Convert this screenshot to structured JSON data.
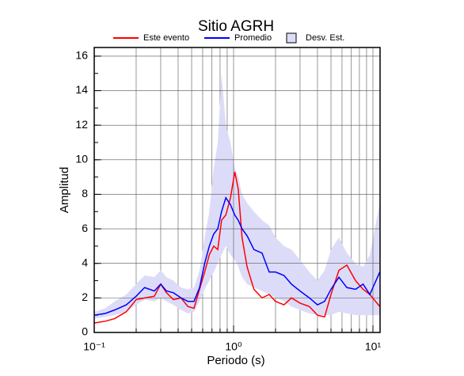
{
  "chart_data": {
    "type": "line",
    "title": "Sitio AGRH",
    "x_label": "Periodo (s)",
    "y_label": "Amplitud",
    "log_x": true,
    "grid": true,
    "xlim": [
      0.1,
      11.25
    ],
    "ylim": [
      0,
      16.5
    ],
    "xticks": [
      {
        "value": 0.1,
        "label": "10⁻¹"
      },
      {
        "value": 1,
        "label": "10⁰"
      },
      {
        "value": 10,
        "label": "10¹"
      }
    ],
    "yticks": [
      0,
      2,
      4,
      6,
      8,
      10,
      12,
      14,
      16
    ],
    "x": [
      0.1,
      0.12,
      0.14,
      0.17,
      0.2,
      0.23,
      0.27,
      0.3,
      0.33,
      0.37,
      0.42,
      0.47,
      0.52,
      0.57,
      0.62,
      0.67,
      0.72,
      0.77,
      0.82,
      0.88,
      0.95,
      1.02,
      1.08,
      1.15,
      1.25,
      1.4,
      1.6,
      1.8,
      2.0,
      2.3,
      2.6,
      3.0,
      3.5,
      4.0,
      4.5,
      5.0,
      5.7,
      6.5,
      7.5,
      8.5,
      9.5,
      11.2
    ],
    "band": {
      "name": "Desv. Est.",
      "color": "#dcdcf8",
      "lower": [
        0.8,
        0.9,
        1.0,
        1.2,
        1.6,
        1.9,
        1.8,
        2.0,
        1.8,
        1.6,
        1.3,
        1.1,
        1.2,
        1.8,
        2.5,
        3.0,
        3.5,
        4.0,
        4.5,
        5.0,
        4.5,
        4.2,
        3.8,
        3.2,
        2.8,
        2.6,
        2.4,
        2.2,
        2.0,
        1.8,
        1.5,
        1.3,
        1.1,
        1.0,
        1.0,
        1.0,
        1.2,
        1.1,
        1.0,
        1.0,
        1.0,
        1.0
      ],
      "upper": [
        1.2,
        1.4,
        1.8,
        2.2,
        2.8,
        3.3,
        3.2,
        3.6,
        3.2,
        3.0,
        2.6,
        2.5,
        2.6,
        3.6,
        5.5,
        7.0,
        9.5,
        11,
        15,
        12,
        11,
        9.5,
        9.0,
        8.0,
        7.5,
        7.0,
        6.5,
        6.2,
        5.5,
        5.0,
        4.8,
        4.2,
        3.5,
        3.0,
        3.6,
        4.8,
        5.5,
        4.6,
        4.0,
        3.8,
        4.5,
        7.5
      ]
    },
    "series": [
      {
        "name": "Este evento",
        "color": "#ff0000",
        "values": [
          0.55,
          0.65,
          0.8,
          1.2,
          1.9,
          2.0,
          2.1,
          2.8,
          2.3,
          1.9,
          2.0,
          1.5,
          1.4,
          2.5,
          3.5,
          4.5,
          5.0,
          4.8,
          6.5,
          6.8,
          7.8,
          9.3,
          8.3,
          5.5,
          3.8,
          2.5,
          2.0,
          2.2,
          1.8,
          1.6,
          2.0,
          1.7,
          1.5,
          1.0,
          0.9,
          2.2,
          3.6,
          3.9,
          3.0,
          2.5,
          2.2,
          1.5
        ]
      },
      {
        "name": "Promedio",
        "color": "#0000ff",
        "values": [
          1.0,
          1.1,
          1.3,
          1.6,
          2.1,
          2.6,
          2.4,
          2.8,
          2.4,
          2.3,
          2.0,
          1.8,
          1.8,
          2.6,
          4.0,
          5.0,
          5.7,
          6.0,
          7.0,
          7.8,
          7.4,
          6.8,
          6.5,
          6.0,
          5.6,
          4.8,
          4.6,
          3.5,
          3.5,
          3.3,
          2.8,
          2.4,
          2.0,
          1.6,
          1.8,
          2.5,
          3.2,
          2.6,
          2.5,
          2.8,
          2.2,
          3.5
        ]
      }
    ]
  }
}
